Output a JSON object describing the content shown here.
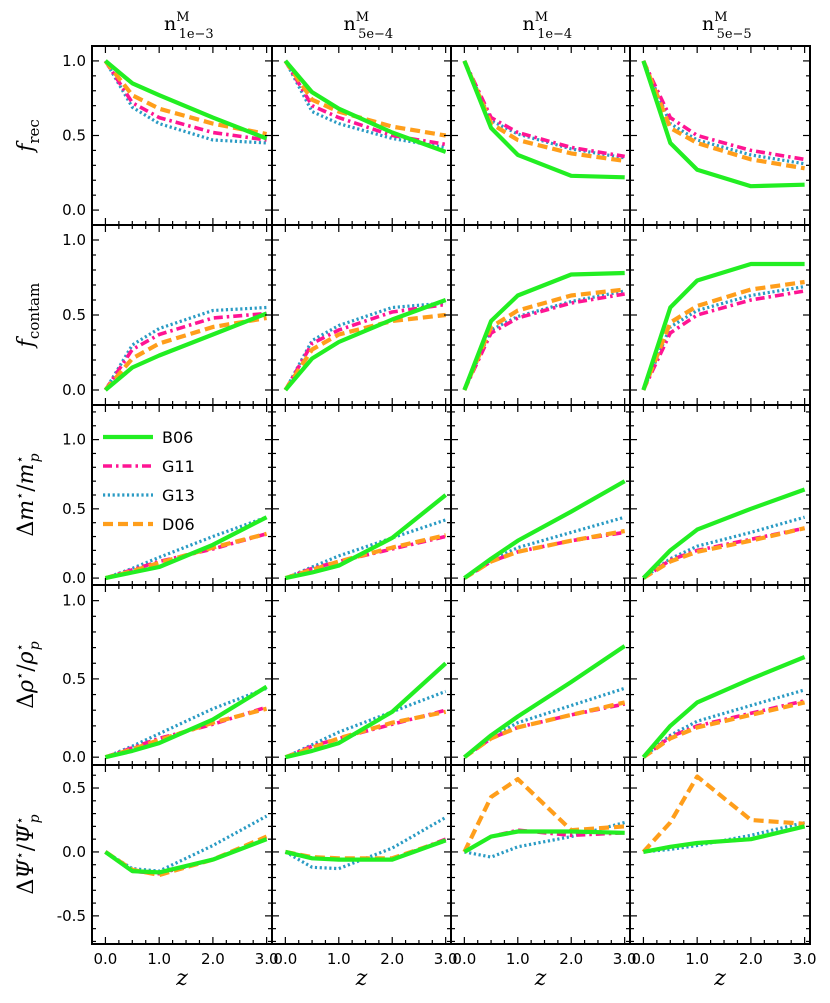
{
  "figure": {
    "x_label": "z",
    "x_ticks": [
      0.0,
      1.0,
      2.0,
      3.0
    ],
    "x_tick_labels": [
      "0.0",
      "1.0",
      "2.0",
      "3.0"
    ],
    "columns": [
      {
        "base": "n",
        "sup": "M",
        "sub": "1e−3"
      },
      {
        "base": "n",
        "sup": "M",
        "sub": "5e−4"
      },
      {
        "base": "n",
        "sup": "M",
        "sub": "1e−4"
      },
      {
        "base": "n",
        "sup": "M",
        "sub": "5e−5"
      }
    ],
    "rows": [
      {
        "label": "f_rec",
        "ylim": [
          -0.1,
          1.1
        ],
        "y_ticks": [
          0.0,
          0.5,
          1.0
        ],
        "y_tick_labels": [
          "0.0",
          "0.5",
          "1.0"
        ]
      },
      {
        "label": "f_contam",
        "ylim": [
          -0.1,
          1.1
        ],
        "y_ticks": [
          0.0,
          0.5,
          1.0
        ],
        "y_tick_labels": [
          "0.0",
          "0.5",
          "1.0"
        ]
      },
      {
        "label": "Δm*/m*_p",
        "ylim": [
          -0.05,
          1.25
        ],
        "y_ticks": [
          0.0,
          0.5,
          1.0
        ],
        "y_tick_labels": [
          "0.0",
          "0.5",
          "1.0"
        ]
      },
      {
        "label": "Δρ*/ρ*_p",
        "ylim": [
          -0.05,
          1.1
        ],
        "y_ticks": [
          0.0,
          0.5,
          1.0
        ],
        "y_tick_labels": [
          "0.0",
          "0.5",
          "1.0"
        ]
      },
      {
        "label": "ΔΨ*/Ψ*_p",
        "ylim": [
          -0.72,
          0.68
        ],
        "y_ticks": [
          -0.5,
          0.0,
          0.5
        ],
        "y_tick_labels": [
          "-0.5",
          "0.0",
          "0.5"
        ]
      }
    ],
    "legend": [
      {
        "name": "B06",
        "color": "#22ee22",
        "dash": "solid"
      },
      {
        "name": "G11",
        "color": "#ff1493",
        "dash": "dashdot"
      },
      {
        "name": "G13",
        "color": "#2a9bc4",
        "dash": "dotted"
      },
      {
        "name": "D06",
        "color": "#ff9e1b",
        "dash": "dashed"
      }
    ]
  },
  "chart_data": {
    "type": "line",
    "x": [
      0.0,
      0.5,
      1.0,
      2.0,
      3.0
    ],
    "series_names": [
      "B06",
      "G11",
      "G13",
      "D06"
    ],
    "panels": [
      [
        {
          "B06": [
            1.0,
            0.85,
            0.77,
            0.62,
            0.48
          ],
          "G11": [
            1.0,
            0.72,
            0.62,
            0.52,
            0.47
          ],
          "G13": [
            1.0,
            0.69,
            0.58,
            0.47,
            0.45
          ],
          "D06": [
            1.0,
            0.77,
            0.68,
            0.58,
            0.51
          ]
        },
        {
          "B06": [
            1.0,
            0.79,
            0.68,
            0.52,
            0.39
          ],
          "G11": [
            1.0,
            0.7,
            0.62,
            0.5,
            0.44
          ],
          "G13": [
            1.0,
            0.66,
            0.58,
            0.48,
            0.42
          ],
          "D06": [
            1.0,
            0.74,
            0.66,
            0.56,
            0.5
          ]
        },
        {
          "B06": [
            1.0,
            0.55,
            0.37,
            0.23,
            0.22
          ],
          "G11": [
            1.0,
            0.62,
            0.52,
            0.42,
            0.36
          ],
          "G13": [
            1.0,
            0.6,
            0.51,
            0.41,
            0.35
          ],
          "D06": [
            1.0,
            0.58,
            0.47,
            0.38,
            0.33
          ]
        },
        {
          "B06": [
            1.0,
            0.45,
            0.27,
            0.16,
            0.17
          ],
          "G11": [
            1.0,
            0.62,
            0.5,
            0.4,
            0.34
          ],
          "G13": [
            1.0,
            0.58,
            0.47,
            0.37,
            0.31
          ],
          "D06": [
            1.0,
            0.55,
            0.45,
            0.34,
            0.28
          ]
        }
      ],
      [
        {
          "B06": [
            0.0,
            0.15,
            0.23,
            0.37,
            0.51
          ],
          "G11": [
            0.0,
            0.27,
            0.37,
            0.48,
            0.51
          ],
          "G13": [
            0.0,
            0.3,
            0.41,
            0.53,
            0.55
          ],
          "D06": [
            0.0,
            0.21,
            0.31,
            0.42,
            0.48
          ]
        },
        {
          "B06": [
            0.0,
            0.21,
            0.32,
            0.47,
            0.6
          ],
          "G11": [
            0.0,
            0.31,
            0.4,
            0.52,
            0.57
          ],
          "G13": [
            0.0,
            0.33,
            0.43,
            0.55,
            0.58
          ],
          "D06": [
            0.0,
            0.27,
            0.37,
            0.46,
            0.5
          ]
        },
        {
          "B06": [
            0.0,
            0.46,
            0.63,
            0.77,
            0.78
          ],
          "G11": [
            0.0,
            0.38,
            0.48,
            0.58,
            0.64
          ],
          "G13": [
            0.0,
            0.4,
            0.49,
            0.59,
            0.66
          ],
          "D06": [
            0.0,
            0.42,
            0.53,
            0.63,
            0.67
          ]
        },
        {
          "B06": [
            0.0,
            0.55,
            0.73,
            0.84,
            0.84
          ],
          "G11": [
            0.0,
            0.38,
            0.5,
            0.6,
            0.66
          ],
          "G13": [
            0.0,
            0.42,
            0.53,
            0.63,
            0.69
          ],
          "D06": [
            0.0,
            0.45,
            0.56,
            0.67,
            0.72
          ]
        }
      ],
      [
        {
          "B06": [
            0.0,
            0.04,
            0.08,
            0.24,
            0.44
          ],
          "G11": [
            0.0,
            0.06,
            0.12,
            0.21,
            0.32
          ],
          "G13": [
            0.0,
            0.07,
            0.15,
            0.3,
            0.44
          ],
          "D06": [
            0.0,
            0.05,
            0.11,
            0.22,
            0.32
          ]
        },
        {
          "B06": [
            0.0,
            0.04,
            0.09,
            0.29,
            0.6
          ],
          "G11": [
            0.0,
            0.07,
            0.12,
            0.21,
            0.3
          ],
          "G13": [
            0.0,
            0.08,
            0.16,
            0.29,
            0.42
          ],
          "D06": [
            0.0,
            0.06,
            0.12,
            0.22,
            0.31
          ]
        },
        {
          "B06": [
            0.0,
            0.14,
            0.27,
            0.48,
            0.7
          ],
          "G11": [
            0.0,
            0.12,
            0.19,
            0.27,
            0.33
          ],
          "G13": [
            0.0,
            0.13,
            0.22,
            0.33,
            0.44
          ],
          "D06": [
            0.0,
            0.12,
            0.19,
            0.27,
            0.34
          ]
        },
        {
          "B06": [
            0.0,
            0.2,
            0.35,
            0.5,
            0.64
          ],
          "G11": [
            0.0,
            0.13,
            0.2,
            0.28,
            0.36
          ],
          "G13": [
            0.0,
            0.14,
            0.23,
            0.33,
            0.44
          ],
          "D06": [
            0.0,
            0.12,
            0.19,
            0.27,
            0.36
          ]
        }
      ],
      [
        {
          "B06": [
            0.0,
            0.04,
            0.09,
            0.24,
            0.45
          ],
          "G11": [
            0.0,
            0.06,
            0.12,
            0.21,
            0.32
          ],
          "G13": [
            0.0,
            0.07,
            0.15,
            0.31,
            0.44
          ],
          "D06": [
            0.0,
            0.05,
            0.11,
            0.22,
            0.31
          ]
        },
        {
          "B06": [
            0.0,
            0.04,
            0.09,
            0.29,
            0.6
          ],
          "G11": [
            0.0,
            0.07,
            0.12,
            0.21,
            0.3
          ],
          "G13": [
            0.0,
            0.08,
            0.16,
            0.29,
            0.42
          ],
          "D06": [
            0.0,
            0.06,
            0.12,
            0.22,
            0.29
          ]
        },
        {
          "B06": [
            0.0,
            0.14,
            0.26,
            0.48,
            0.71
          ],
          "G11": [
            0.0,
            0.12,
            0.19,
            0.27,
            0.34
          ],
          "G13": [
            0.0,
            0.13,
            0.22,
            0.33,
            0.44
          ],
          "D06": [
            0.0,
            0.12,
            0.19,
            0.27,
            0.35
          ]
        },
        {
          "B06": [
            0.0,
            0.2,
            0.35,
            0.5,
            0.64
          ],
          "G11": [
            0.0,
            0.13,
            0.2,
            0.28,
            0.36
          ],
          "G13": [
            0.0,
            0.14,
            0.23,
            0.33,
            0.43
          ],
          "D06": [
            0.0,
            0.12,
            0.19,
            0.27,
            0.35
          ]
        }
      ],
      [
        {
          "B06": [
            0.0,
            -0.15,
            -0.16,
            -0.06,
            0.1
          ],
          "G11": [
            0.0,
            -0.15,
            -0.17,
            -0.06,
            0.1
          ],
          "G13": [
            0.0,
            -0.13,
            -0.15,
            0.05,
            0.28
          ],
          "D06": [
            0.0,
            -0.14,
            -0.18,
            -0.06,
            0.12
          ]
        },
        {
          "B06": [
            0.0,
            -0.05,
            -0.06,
            -0.06,
            0.09
          ],
          "G11": [
            0.0,
            -0.05,
            -0.06,
            -0.06,
            0.1
          ],
          "G13": [
            0.0,
            -0.12,
            -0.13,
            0.03,
            0.27
          ],
          "D06": [
            0.0,
            -0.04,
            -0.05,
            -0.05,
            0.09
          ]
        },
        {
          "B06": [
            0.0,
            0.12,
            0.16,
            0.16,
            0.15
          ],
          "G11": [
            0.0,
            0.12,
            0.17,
            0.13,
            0.15
          ],
          "G13": [
            0.0,
            -0.04,
            0.04,
            0.12,
            0.23
          ],
          "D06": [
            0.0,
            0.43,
            0.57,
            0.17,
            0.2
          ]
        },
        {
          "B06": [
            0.0,
            0.04,
            0.07,
            0.1,
            0.2
          ],
          "G11": [
            0.0,
            0.04,
            0.07,
            0.1,
            0.2
          ],
          "G13": [
            0.0,
            0.02,
            0.05,
            0.13,
            0.23
          ],
          "D06": [
            0.0,
            0.23,
            0.59,
            0.25,
            0.22
          ]
        }
      ]
    ]
  }
}
